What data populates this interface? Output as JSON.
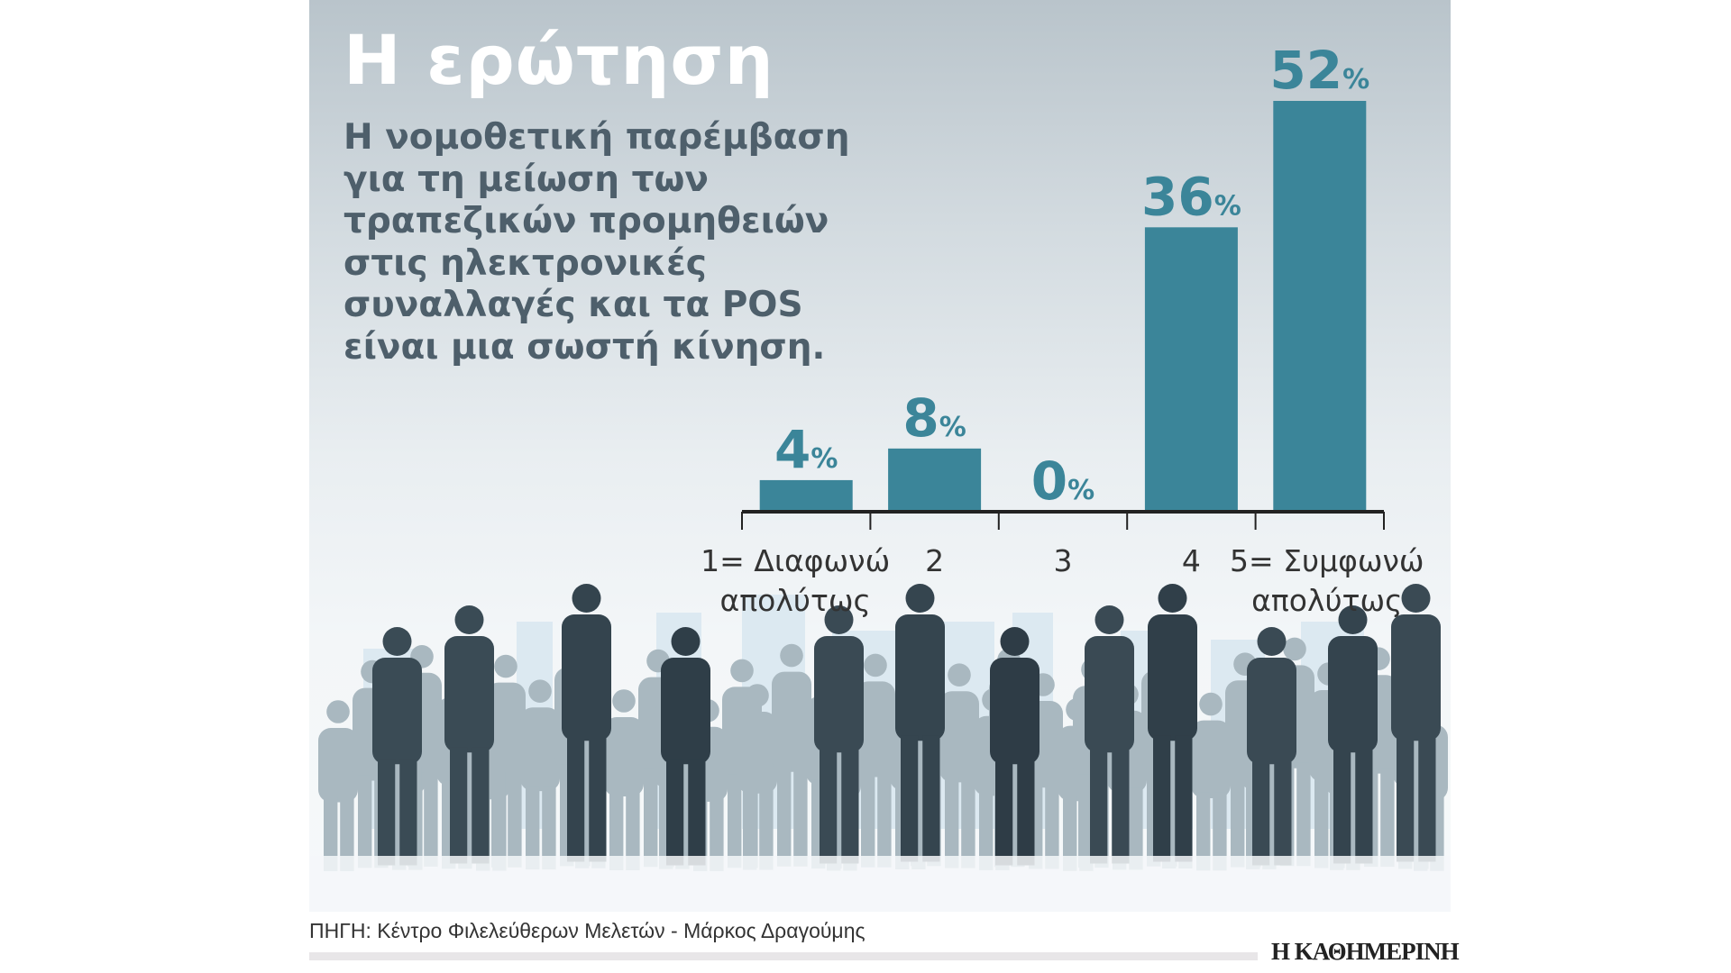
{
  "title": "Η ερώτηση",
  "question": "Η νομοθετική παρέμβαση για τη μείωση των τραπεζικών προμηθειών στις ηλεκτρονικές συναλλαγές και τα POS είναι μια σωστή κίνηση.",
  "source": "ΠΗΓΗ: Κέντρο Φιλελεύθερων Μελετών - Μάρκος Δραγούμης",
  "logo": "Η ΚΑΘΗΜΕΡΙΝΗ",
  "colors": {
    "bar": "#3b8599",
    "axis": "#222222",
    "label": "#333333"
  },
  "chart_data": {
    "type": "bar",
    "title": "Η ερώτηση",
    "categories": [
      [
        "1= Διαφωνώ",
        "απολύτως"
      ],
      [
        "2"
      ],
      [
        "3"
      ],
      [
        "4"
      ],
      [
        "5= Συμφωνώ",
        "απολύτως"
      ]
    ],
    "values": [
      4,
      8,
      0,
      36,
      52
    ],
    "unit": "%",
    "ylim": [
      0,
      52
    ],
    "grid": false,
    "xlabel": "",
    "ylabel": ""
  }
}
